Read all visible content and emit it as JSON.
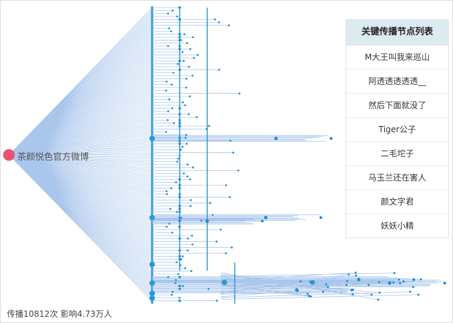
{
  "root": {
    "name": "茶颜悦色官方微博",
    "color": "#e8546e"
  },
  "colors": {
    "edge": "#a9c6ec",
    "node": "#2a9ad6",
    "dot": "#1d8fd0"
  },
  "key_nodes": {
    "title": "关键传播节点列表",
    "items": [
      "M大王叫我来巡山",
      "阿透透透透透__",
      "然后下面就没了",
      "Tiger公子",
      "二毛坨子",
      "马玉兰还在害人",
      "颜文字君",
      "妖妖小精"
    ]
  },
  "stats": {
    "text": "传播10812次 影响4.73万人"
  }
}
